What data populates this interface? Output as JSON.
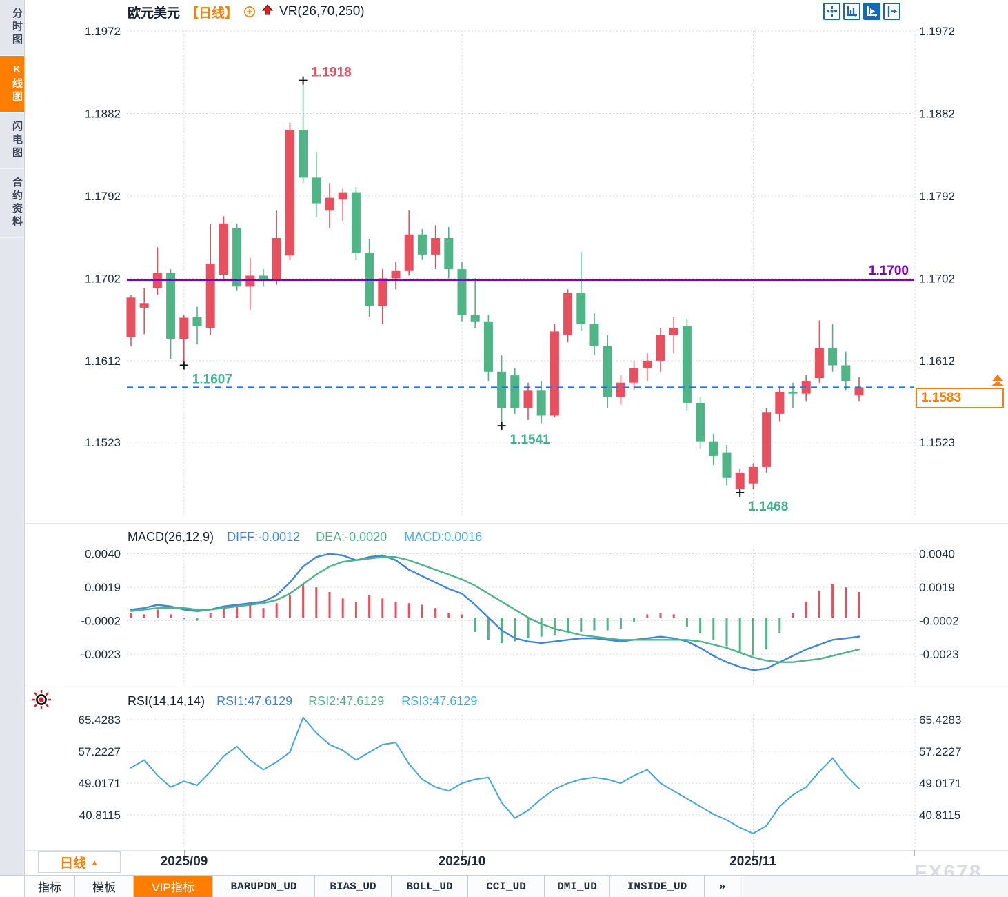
{
  "sidebar": {
    "items": [
      {
        "label": "分时图",
        "active": false
      },
      {
        "label": "K线图",
        "active": true
      },
      {
        "label": "闪电图",
        "active": false
      },
      {
        "label": "合约资料",
        "active": false
      }
    ]
  },
  "header": {
    "symbol": "欧元美元",
    "period": "【日线】",
    "plus_icon": "circle-plus-icon",
    "arrow_icon": "red-up-arrow-icon",
    "indicator": "VR(26,70,250)"
  },
  "toolbar": {
    "icons": [
      {
        "name": "pan-crosshair-icon",
        "active": false
      },
      {
        "name": "axis-scale-icon",
        "active": false
      },
      {
        "name": "axis-play-icon",
        "active": true
      },
      {
        "name": "axis-shift-icon",
        "active": false
      }
    ]
  },
  "macd_panel": {
    "title": "MACD(26,12,9)",
    "diff_label": "DIFF:-0.0012",
    "dea_label": "DEA:-0.0020",
    "macd_label": "MACD:0.0016"
  },
  "rsi_panel": {
    "title": "RSI(14,14,14)",
    "rsi1_label": "RSI1:47.6129",
    "rsi2_label": "RSI2:47.6129",
    "rsi3_label": "RSI3:47.6129"
  },
  "annotations": {
    "high": "1.1918",
    "low1": "1.1607",
    "low2": "1.1541",
    "low3": "1.1468",
    "hline": "1.1700",
    "last_price": "1.1583"
  },
  "x_axis": {
    "labels": [
      "2025/09",
      "2025/10",
      "2025/11"
    ]
  },
  "period_selector": {
    "label": "日线",
    "arrow": "▲"
  },
  "bottom_tabs": [
    {
      "label": "指标",
      "mono": false,
      "active": false
    },
    {
      "label": "模板",
      "mono": false,
      "active": false
    },
    {
      "label": "VIP指标",
      "mono": false,
      "active": true
    },
    {
      "label": "BARUPDN_UD",
      "mono": true,
      "active": false
    },
    {
      "label": "BIAS_UD",
      "mono": true,
      "active": false
    },
    {
      "label": "BOLL_UD",
      "mono": true,
      "active": false
    },
    {
      "label": "CCI_UD",
      "mono": true,
      "active": false
    },
    {
      "label": "DMI_UD",
      "mono": true,
      "active": false
    },
    {
      "label": "INSIDE_UD",
      "mono": true,
      "active": false
    },
    {
      "label": "»",
      "mono": true,
      "active": false
    }
  ],
  "watermark": "FX678",
  "colors": {
    "up": "#e8505f",
    "down": "#4fb586",
    "hline_purple": "#7a00cc",
    "price_line_blue": "#1778e8",
    "accent_orange": "#ff7d00",
    "grid": "#d9d9d9",
    "axis_text": "#1c2b3a",
    "diff_blue": "#3d85dd",
    "dea_green": "#4fb586",
    "macd_value_cyan": "#45aee0",
    "rsi_blue": "#45a5dc",
    "marker_black": "#111111",
    "annot_red": "#ef4c62",
    "annot_green": "#3cb48c",
    "toolbar_blue": "#1568b3"
  },
  "chart_data": [
    {
      "type": "candlestick",
      "title": "欧元美元 日线",
      "ylim": [
        1.1468,
        1.1972
      ],
      "y_ticks": [
        "1.1972",
        "1.1882",
        "1.1792",
        "1.1702",
        "1.1612",
        "1.1523"
      ],
      "x_ticks": [
        "2025/09",
        "2025/10",
        "2025/11"
      ],
      "x_tick_candle_index": [
        4,
        25,
        47
      ],
      "hline_value": 1.17,
      "last_price_value": 1.1583,
      "marker_high": {
        "index": 13,
        "value": 1.1918
      },
      "marker_lows": [
        {
          "index": 4,
          "value": 1.1607
        },
        {
          "index": 28,
          "value": 1.1541
        },
        {
          "index": 46,
          "value": 1.1468
        }
      ],
      "candles_ohlc": [
        [
          1.1638,
          1.1684,
          1.1628,
          1.1681
        ],
        [
          1.167,
          1.1691,
          1.1641,
          1.1675
        ],
        [
          1.1691,
          1.1736,
          1.1684,
          1.1708
        ],
        [
          1.1708,
          1.1712,
          1.1614,
          1.1636
        ],
        [
          1.1636,
          1.1662,
          1.1607,
          1.1659
        ],
        [
          1.166,
          1.1671,
          1.163,
          1.165
        ],
        [
          1.1648,
          1.1761,
          1.164,
          1.1718
        ],
        [
          1.1706,
          1.177,
          1.17,
          1.1762
        ],
        [
          1.1757,
          1.1762,
          1.1688,
          1.1693
        ],
        [
          1.1693,
          1.1724,
          1.1668,
          1.1705
        ],
        [
          1.1705,
          1.1712,
          1.1693,
          1.17
        ],
        [
          1.17,
          1.1776,
          1.1695,
          1.1746
        ],
        [
          1.1727,
          1.1872,
          1.1722,
          1.1864
        ],
        [
          1.1864,
          1.1918,
          1.1806,
          1.1812
        ],
        [
          1.1812,
          1.184,
          1.1769,
          1.1784
        ],
        [
          1.1776,
          1.1806,
          1.1757,
          1.179
        ],
        [
          1.1788,
          1.18,
          1.1764,
          1.1796
        ],
        [
          1.1796,
          1.1802,
          1.1722,
          1.173
        ],
        [
          1.173,
          1.1745,
          1.166,
          1.1672
        ],
        [
          1.1672,
          1.1712,
          1.1652,
          1.1702
        ],
        [
          1.1702,
          1.172,
          1.169,
          1.171
        ],
        [
          1.171,
          1.1776,
          1.1705,
          1.175
        ],
        [
          1.175,
          1.1756,
          1.1722,
          1.1728
        ],
        [
          1.1728,
          1.176,
          1.1712,
          1.1746
        ],
        [
          1.1746,
          1.1758,
          1.1702,
          1.1712
        ],
        [
          1.1712,
          1.172,
          1.1655,
          1.1662
        ],
        [
          1.1662,
          1.1702,
          1.1648,
          1.1655
        ],
        [
          1.1655,
          1.1662,
          1.159,
          1.16
        ],
        [
          1.16,
          1.1618,
          1.1541,
          1.156
        ],
        [
          1.1596,
          1.1604,
          1.1554,
          1.156
        ],
        [
          1.156,
          1.1588,
          1.1548,
          1.158
        ],
        [
          1.158,
          1.159,
          1.1544,
          1.1552
        ],
        [
          1.1552,
          1.1652,
          1.155,
          1.1644
        ],
        [
          1.164,
          1.169,
          1.1632,
          1.1686
        ],
        [
          1.1686,
          1.1731,
          1.1645,
          1.1652
        ],
        [
          1.1652,
          1.1664,
          1.1618,
          1.1628
        ],
        [
          1.1628,
          1.164,
          1.156,
          1.1572
        ],
        [
          1.1572,
          1.1596,
          1.1564,
          1.1588
        ],
        [
          1.1588,
          1.1612,
          1.158,
          1.1604
        ],
        [
          1.1604,
          1.162,
          1.159,
          1.1612
        ],
        [
          1.1612,
          1.1648,
          1.16,
          1.164
        ],
        [
          1.164,
          1.166,
          1.162,
          1.1648
        ],
        [
          1.165,
          1.1658,
          1.1558,
          1.1566
        ],
        [
          1.1566,
          1.1572,
          1.1516,
          1.1524
        ],
        [
          1.1524,
          1.1532,
          1.1498,
          1.1508
        ],
        [
          1.1512,
          1.152,
          1.1476,
          1.1484
        ],
        [
          1.1472,
          1.1494,
          1.1468,
          1.149
        ],
        [
          1.1478,
          1.15,
          1.1472,
          1.1496
        ],
        [
          1.1496,
          1.156,
          1.149,
          1.1556
        ],
        [
          1.1554,
          1.1584,
          1.1546,
          1.1578
        ],
        [
          1.1578,
          1.1588,
          1.156,
          1.1576
        ],
        [
          1.1576,
          1.1596,
          1.1568,
          1.159
        ],
        [
          1.1593,
          1.1656,
          1.1588,
          1.1626
        ],
        [
          1.1626,
          1.1652,
          1.16,
          1.1607
        ],
        [
          1.1607,
          1.1622,
          1.158,
          1.159
        ],
        [
          1.1574,
          1.1594,
          1.1568,
          1.1583
        ]
      ]
    },
    {
      "type": "bar",
      "title": "MACD(26,12,9)",
      "y_ticks": [
        "0.0040",
        "0.0019",
        "-0.0002",
        "-0.0023"
      ],
      "unit_scale": 0.0001,
      "hist": [
        3,
        2,
        5,
        2,
        -1,
        -2,
        3,
        6,
        8,
        8,
        6,
        9,
        14,
        21,
        19,
        16,
        12,
        10,
        14,
        12,
        10,
        9,
        8,
        6,
        3,
        2,
        -9,
        -14,
        -16,
        -15,
        -13,
        -12,
        -11,
        -10,
        -9,
        -8,
        -8,
        -7,
        -3,
        2,
        3,
        2,
        -6,
        -10,
        -14,
        -18,
        -22,
        -24,
        -20,
        -10,
        3,
        10,
        17,
        21,
        19,
        16
      ],
      "series": [
        {
          "name": "DIFF",
          "values": [
            5,
            6,
            8,
            7,
            5,
            4,
            5,
            7,
            8,
            9,
            10,
            14,
            22,
            32,
            38,
            40,
            39,
            36,
            38,
            39,
            36,
            30,
            26,
            22,
            18,
            15,
            8,
            0,
            -8,
            -13,
            -15,
            -16,
            -15,
            -14,
            -13,
            -13,
            -14,
            -15,
            -14,
            -13,
            -12,
            -13,
            -15,
            -19,
            -24,
            -28,
            -31,
            -33,
            -32,
            -28,
            -24,
            -20,
            -17,
            -14,
            -13,
            -12
          ]
        },
        {
          "name": "DEA",
          "values": [
            4,
            5,
            6,
            6,
            6,
            5,
            5,
            6,
            7,
            8,
            9,
            11,
            15,
            21,
            27,
            32,
            35,
            36,
            37,
            38,
            38,
            36,
            33,
            30,
            27,
            24,
            20,
            15,
            10,
            5,
            0,
            -4,
            -7,
            -9,
            -11,
            -12,
            -13,
            -14,
            -14,
            -14,
            -14,
            -14,
            -14,
            -15,
            -17,
            -19,
            -22,
            -25,
            -27,
            -28,
            -28,
            -27,
            -26,
            -24,
            -22,
            -20
          ]
        }
      ],
      "last_values": {
        "diff": -0.0012,
        "dea": -0.002,
        "macd": 0.0016
      }
    },
    {
      "type": "line",
      "title": "RSI(14,14,14)",
      "y_ticks": [
        "65.4283",
        "57.2227",
        "49.0171",
        "40.8115"
      ],
      "series": [
        {
          "name": "RSI1",
          "values": [
            53,
            55,
            51,
            48,
            49.5,
            48.5,
            52,
            56,
            58.5,
            55,
            52.5,
            54.5,
            57,
            66,
            62,
            59,
            57.5,
            55,
            57,
            59,
            59.5,
            54,
            50,
            48,
            47,
            49,
            50,
            50.5,
            44,
            40,
            42,
            45,
            47.5,
            49,
            50,
            50.5,
            50,
            49,
            51,
            52.5,
            49,
            47,
            45,
            43,
            41,
            39.5,
            37.5,
            36,
            38,
            43,
            46,
            48,
            52,
            55.5,
            51,
            47.6
          ]
        }
      ],
      "last_values": {
        "rsi1": 47.6129,
        "rsi2": 47.6129,
        "rsi3": 47.6129
      }
    }
  ]
}
